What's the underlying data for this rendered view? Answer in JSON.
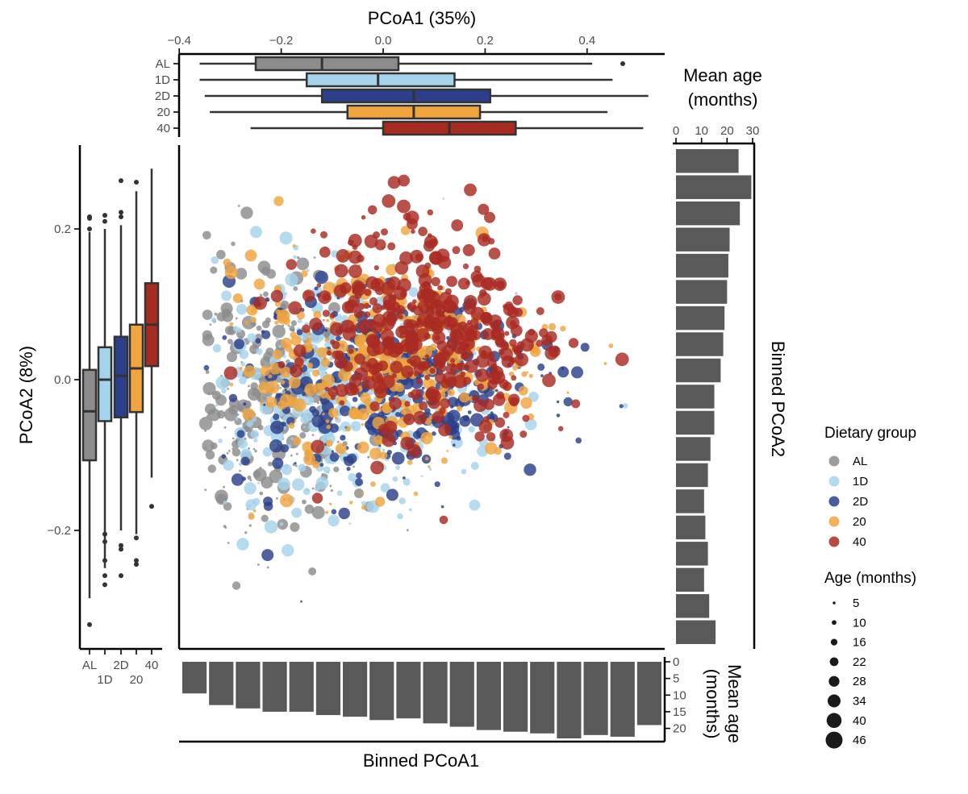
{
  "chart_data": {
    "type": "scatter",
    "main": {
      "xlabel": "PCoA1 (35%)",
      "ylabel": "PCoA2 (8%)",
      "xlim": [
        -0.4,
        0.56
      ],
      "ylim": [
        -0.355,
        0.3
      ],
      "x_ticks": [
        -0.4,
        -0.2,
        0.0,
        0.2,
        0.4
      ],
      "x_tick_labels": [
        "−0.4",
        "−0.2",
        "0.0",
        "0.2",
        "0.4"
      ],
      "y_ticks": [
        0.2,
        0.0,
        -0.2
      ],
      "y_tick_labels": [
        "0.2",
        "0.0",
        "−0.2"
      ],
      "groups": [
        {
          "name": "AL",
          "color": "#8c8c8c",
          "x_center": -0.23,
          "y_center": -0.02,
          "x_sd": 0.11,
          "y_sd": 0.085,
          "n": 420
        },
        {
          "name": "1D",
          "color": "#a6d3ec",
          "x_center": -0.07,
          "y_center": -0.02,
          "x_sd": 0.14,
          "y_sd": 0.08,
          "n": 360
        },
        {
          "name": "2D",
          "color": "#2b3f8a",
          "x_center": 0.03,
          "y_center": -0.005,
          "x_sd": 0.15,
          "y_sd": 0.07,
          "n": 360
        },
        {
          "name": "20",
          "color": "#f0a53f",
          "x_center": 0.01,
          "y_center": 0.02,
          "x_sd": 0.15,
          "y_sd": 0.08,
          "n": 360
        },
        {
          "name": "40",
          "color": "#a82b22",
          "x_center": 0.09,
          "y_center": 0.075,
          "x_sd": 0.12,
          "y_sd": 0.075,
          "n": 420
        }
      ]
    },
    "top_boxplot": {
      "axis": "PCoA1",
      "categories": [
        "AL",
        "1D",
        "2D",
        "20",
        "40"
      ],
      "stats": [
        {
          "name": "AL",
          "whisker_low": -0.36,
          "q1": -0.25,
          "median": -0.12,
          "q3": 0.03,
          "whisker_high": 0.41,
          "outliers": [
            0.47
          ]
        },
        {
          "name": "1D",
          "whisker_low": -0.36,
          "q1": -0.15,
          "median": -0.01,
          "q3": 0.14,
          "whisker_high": 0.45,
          "outliers": []
        },
        {
          "name": "2D",
          "whisker_low": -0.35,
          "q1": -0.12,
          "median": 0.06,
          "q3": 0.21,
          "whisker_high": 0.52,
          "outliers": []
        },
        {
          "name": "20",
          "whisker_low": -0.34,
          "q1": -0.07,
          "median": 0.06,
          "q3": 0.19,
          "whisker_high": 0.44,
          "outliers": []
        },
        {
          "name": "40",
          "whisker_low": -0.26,
          "q1": 0.0,
          "median": 0.13,
          "q3": 0.26,
          "whisker_high": 0.51,
          "outliers": []
        }
      ]
    },
    "left_boxplot": {
      "axis": "PCoA2",
      "categories": [
        "AL",
        "1D",
        "2D",
        "20",
        "40"
      ],
      "stats": [
        {
          "name": "AL",
          "whisker_low": -0.29,
          "q1": -0.107,
          "median": -0.042,
          "q3": 0.013,
          "whisker_high": 0.196,
          "outliers": [
            0.2,
            0.214,
            0.216,
            -0.325
          ]
        },
        {
          "name": "1D",
          "whisker_low": -0.25,
          "q1": -0.055,
          "median": 0.0,
          "q3": 0.043,
          "whisker_high": 0.2,
          "outliers": [
            0.21,
            0.218,
            -0.205,
            -0.215,
            -0.24,
            -0.26,
            -0.272
          ]
        },
        {
          "name": "2D",
          "whisker_low": -0.2,
          "q1": -0.05,
          "median": 0.005,
          "q3": 0.057,
          "whisker_high": 0.205,
          "outliers": [
            0.216,
            0.222,
            0.264,
            -0.22,
            -0.225,
            -0.26
          ]
        },
        {
          "name": "20",
          "whisker_low": -0.205,
          "q1": -0.043,
          "median": 0.015,
          "q3": 0.073,
          "whisker_high": 0.25,
          "outliers": [
            0.262,
            -0.21,
            -0.24,
            -0.245
          ]
        },
        {
          "name": "40",
          "whisker_low": -0.13,
          "q1": 0.018,
          "median": 0.073,
          "q3": 0.128,
          "whisker_high": 0.28,
          "outliers": [
            -0.168
          ]
        }
      ]
    },
    "right_bars": {
      "title": "Mean age\n(months)",
      "axis_label": "Binned PCoA2",
      "xlim": [
        0,
        31
      ],
      "ticks": [
        0,
        10,
        20,
        30
      ],
      "tick_labels": [
        "0",
        "10",
        "20",
        "30"
      ],
      "values_top_to_bottom": [
        24.5,
        29.5,
        25,
        21,
        20.5,
        20,
        19,
        18.5,
        17.5,
        15,
        15,
        13.5,
        12.5,
        11,
        11.5,
        12.5,
        11,
        13,
        15.5
      ]
    },
    "bottom_bars": {
      "title": "Mean age\n(months)",
      "axis_label": "Binned PCoA1",
      "ylim": [
        0,
        23
      ],
      "ticks": [
        0,
        5,
        10,
        15,
        20
      ],
      "tick_labels": [
        "0",
        "5",
        "10",
        "15",
        "20"
      ],
      "values_left_to_right": [
        9.5,
        13,
        14,
        15,
        15,
        16,
        16.5,
        17.5,
        17,
        18.5,
        19.5,
        20.5,
        21,
        21.5,
        23,
        22,
        22.5,
        19
      ]
    },
    "legend": {
      "color_title": "Dietary group",
      "color_items": [
        {
          "label": "AL",
          "color": "#8c8c8c"
        },
        {
          "label": "1D",
          "color": "#a6d3ec"
        },
        {
          "label": "2D",
          "color": "#2b3f8a"
        },
        {
          "label": "20",
          "color": "#f0a53f"
        },
        {
          "label": "40",
          "color": "#a82b22"
        }
      ],
      "size_title": "Age (months)",
      "size_items": [
        5,
        10,
        16,
        22,
        28,
        34,
        40,
        46
      ],
      "size_labels": [
        "5",
        "10",
        "16",
        "22",
        "28",
        "34",
        "40",
        "46"
      ]
    }
  }
}
